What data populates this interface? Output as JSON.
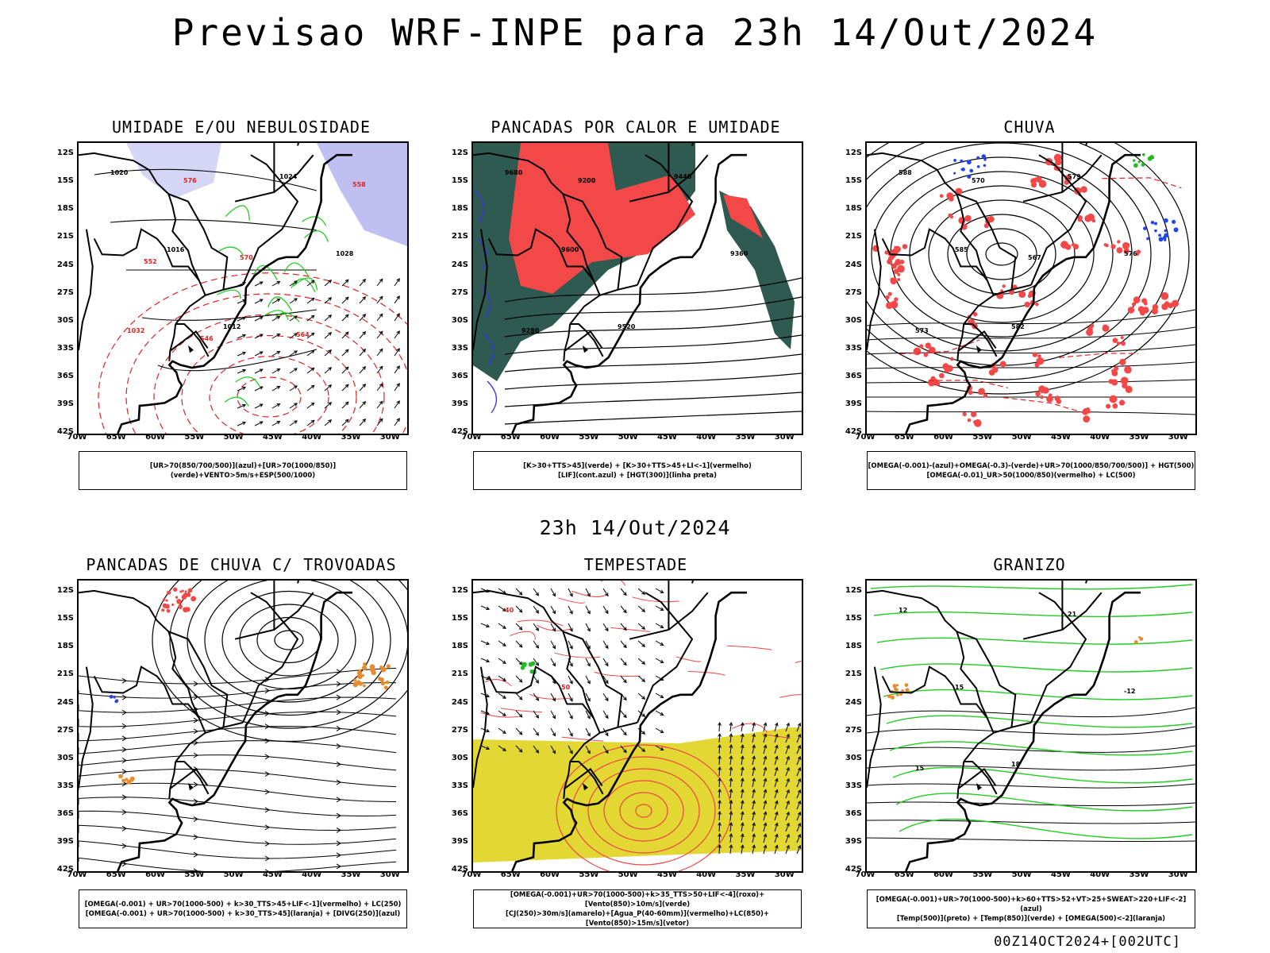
{
  "header": {
    "title": "Previsao WRF-INPE  para 23h 14/Out/2024"
  },
  "mid_title": "23h 14/Out/2024",
  "footer": "00Z14OCT2024+[002UTC]",
  "axes": {
    "lat_labels": [
      "12S",
      "15S",
      "18S",
      "21S",
      "24S",
      "27S",
      "30S",
      "33S",
      "36S",
      "39S",
      "42S"
    ],
    "lon_labels": [
      "70W",
      "65W",
      "60W",
      "55W",
      "50W",
      "45W",
      "40W",
      "35W",
      "30W"
    ]
  },
  "panels": [
    {
      "id": "umidade",
      "title": "UMIDADE E/OU NEBULOSIDADE",
      "legend": [
        "[UR>70(850/700/500)](azul)+[UR>70(1000/850)](verde)+VENTO>5m/s+ESP(500/1000)"
      ],
      "contour_labels": [
        "1020",
        "1016",
        "1012",
        "1024",
        "1028",
        "1032",
        "576",
        "570",
        "564",
        "558",
        "552",
        "546"
      ]
    },
    {
      "id": "pancadas_calor",
      "title": "PANCADAS POR CALOR E UMIDADE",
      "legend": [
        "[K>30+TTS>45](verde) + [K>30+TTS>45+LI<-1](vermelho)",
        "[LIF](cont.azul) + [HGT(300)](linha preta)"
      ],
      "contour_labels": [
        "9680",
        "9600",
        "9520",
        "9440",
        "9360",
        "9280",
        "9200"
      ]
    },
    {
      "id": "chuva",
      "title": "CHUVA",
      "legend": [
        "[OMEGA(-0.001)-(azul)+OMEGA(-0.3)-(verde)+UR>70(1000/850/700/500)] + HGT(500)",
        "[OMEGA(-0.01)_UR>50(1000/850)(vermelho) + LC(500)"
      ],
      "contour_labels": [
        "588",
        "585",
        "582",
        "579",
        "576",
        "573",
        "570",
        "567"
      ]
    },
    {
      "id": "pancadas_trovoadas",
      "title": "PANCADAS DE CHUVA C/ TROVOADAS",
      "legend": [
        "[OMEGA(-0.001) + UR>70(1000-500) + k>30_TTS>45+LIF<-1](vermelho) + LC(250)",
        "[OMEGA(-0.001) + UR>70(1000-500) + k>30_TTS>45](laranja) + [DIVG(250)](azul)"
      ],
      "contour_labels": []
    },
    {
      "id": "tempestade",
      "title": "TEMPESTADE",
      "legend": [
        "[OMEGA(-0.001)+UR>70(1000-500)+k>35_TTS>50+LIF<-4](roxo)+[Vento(850)>10m/s](verde)",
        "[CJ(250)>30m/s](amarelo)+[Agua_P(40-60mm)](vermelho)+LC(850)+[Vento(850)>15m/s](vetor)"
      ],
      "contour_labels": [
        "40",
        "50"
      ]
    },
    {
      "id": "granizo",
      "title": "GRANIZO",
      "legend": [
        "[OMEGA(-0.001)+UR>70(1000-500)+k>60+TTS>52+VT>25+SWEAT>220+LIF<-2](azul)",
        "[Temp(500)](preto) + [Temp(850)](verde) + [OMEGA(500)<-2](laranja)"
      ],
      "contour_labels": [
        "12",
        "15",
        "18",
        "21",
        "-12",
        "15"
      ]
    }
  ]
}
